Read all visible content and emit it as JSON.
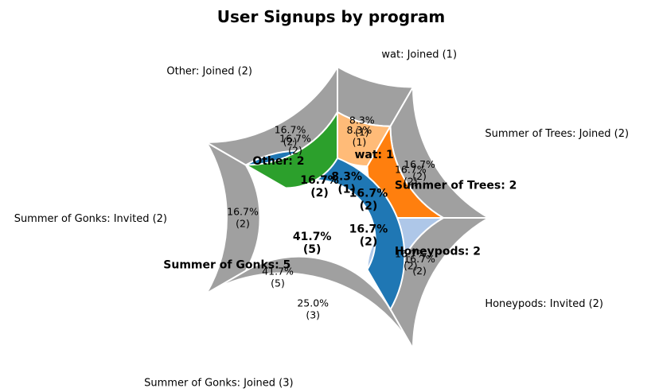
{
  "chart_data": {
    "type": "pie",
    "subtype": "nested-donut",
    "title": "User Signups by program",
    "start_angle_deg": 90,
    "direction": "clockwise",
    "inner_ring": {
      "slices": [
        {
          "name": "wat",
          "value": 1,
          "color": "#ffbb78",
          "pct_label": "8.3%",
          "count_label": "(1)",
          "label": "wat: 1",
          "autopct": "8.3%\n(1)"
        },
        {
          "name": "Summer of Trees",
          "value": 2,
          "color": "#ff7f0e",
          "pct_label": "16.7%",
          "count_label": "(2)",
          "label": "Summer of Trees: 2",
          "autopct": "16.7%\n(2)"
        },
        {
          "name": "Honeypods",
          "value": 2,
          "color": "#aec7e8",
          "pct_label": "16.7%",
          "count_label": "(2)",
          "label": "Honeypods: 2",
          "autopct": "16.7%\n(2)"
        },
        {
          "name": "Summer of Gonks",
          "value": 5,
          "color": "#1f77b4",
          "pct_label": "41.7%",
          "count_label": "(5)",
          "label": "Summer of Gonks: 5",
          "autopct": "41.7%\n(5)"
        },
        {
          "name": "Other",
          "value": 2,
          "color": "#2ca02c",
          "pct_label": "16.7%",
          "count_label": "(2)",
          "label": "Other: 2",
          "autopct": "16.7%\n(2)"
        }
      ]
    },
    "outer_ring": {
      "color": "#a0a0a0",
      "slices": [
        {
          "name": "wat: Joined (1)",
          "value": 1,
          "pct_label": "8.3%",
          "count_label": "(1)"
        },
        {
          "name": "Summer of Trees: Joined (2)",
          "value": 2,
          "pct_label": "16.7%",
          "count_label": "(2)"
        },
        {
          "name": "Honeypods: Invited (2)",
          "value": 2,
          "pct_label": "16.7%",
          "count_label": "(2)"
        },
        {
          "name": "Summer of Gonks: Joined (3)",
          "value": 3,
          "pct_label": "25.0%",
          "count_label": "(3)"
        },
        {
          "name": "Summer of Gonks: Invited (2)",
          "value": 2,
          "pct_label": "16.7%",
          "count_label": "(2)"
        },
        {
          "name": "Other: Joined (2)",
          "value": 2,
          "pct_label": "16.7%",
          "count_label": "(2)"
        }
      ]
    }
  }
}
